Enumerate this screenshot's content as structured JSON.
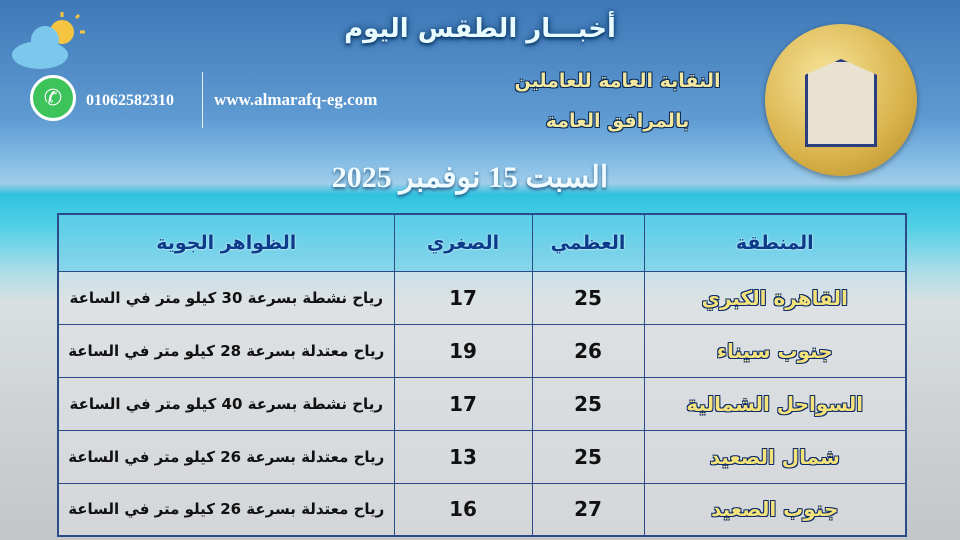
{
  "header": {
    "title": "أخبـــار الطقس اليوم",
    "org_line1": "النقابة العامة للعاملين",
    "org_line2": "بالمرافق العامة",
    "website": "www.almarafq-eg.com",
    "phone": "01062582310",
    "date": "السبت 15 نوفمبر 2025"
  },
  "icons": {
    "weather": "sun-cloud-icon",
    "contact": "whatsapp-icon",
    "logo": "union-emblem"
  },
  "table": {
    "headers": [
      "المنطقة",
      "العظمي",
      "الصغري",
      "الظواهر الجوية"
    ],
    "rows": [
      {
        "region": "القاهرة الكبري",
        "max": "25",
        "min": "17",
        "desc": "رياح نشطة بسرعة 30 كيلو متر في الساعة"
      },
      {
        "region": "جنوب سيناء",
        "max": "26",
        "min": "19",
        "desc": "رياح معتدلة بسرعة 28 كيلو متر في الساعة"
      },
      {
        "region": "السواحل الشمالية",
        "max": "25",
        "min": "17",
        "desc": "رياح نشطة بسرعة 40 كيلو متر في الساعة"
      },
      {
        "region": "شمال الصعيد",
        "max": "25",
        "min": "13",
        "desc": "رياح معتدلة بسرعة 26 كيلو متر في الساعة"
      },
      {
        "region": "جنوب الصعيد",
        "max": "27",
        "min": "16",
        "desc": "رياح معتدلة بسرعة 26 كيلو متر في الساعة"
      }
    ]
  }
}
